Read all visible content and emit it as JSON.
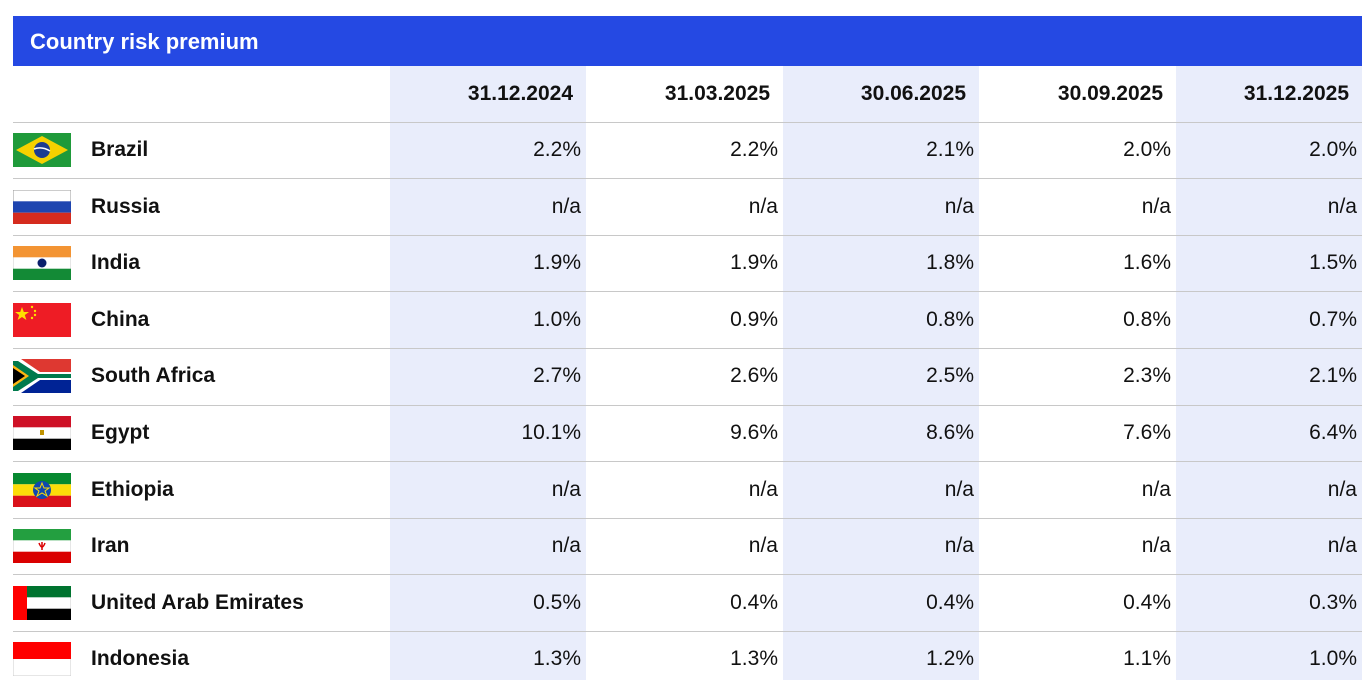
{
  "table": {
    "title": "Country risk premium",
    "columns": [
      "31.12.2024",
      "31.03.2025",
      "30.06.2025",
      "30.09.2025",
      "31.12.2025"
    ],
    "rows": [
      [
        "Brazil",
        "2.2%",
        "2.2%",
        "2.1%",
        "2.0%",
        "2.0%"
      ],
      [
        "Russia",
        "n/a",
        "n/a",
        "n/a",
        "n/a",
        "n/a"
      ],
      [
        "India",
        "1.9%",
        "1.9%",
        "1.8%",
        "1.6%",
        "1.5%"
      ],
      [
        "China",
        "1.0%",
        "0.9%",
        "0.8%",
        "0.8%",
        "0.7%"
      ],
      [
        "South Africa",
        "2.7%",
        "2.6%",
        "2.5%",
        "2.3%",
        "2.1%"
      ],
      [
        "Egypt",
        "10.1%",
        "9.6%",
        "8.6%",
        "7.6%",
        "6.4%"
      ],
      [
        "Ethiopia",
        "n/a",
        "n/a",
        "n/a",
        "n/a",
        "n/a"
      ],
      [
        "Iran",
        "n/a",
        "n/a",
        "n/a",
        "n/a",
        "n/a"
      ],
      [
        "United Arab Emirates",
        "0.5%",
        "0.4%",
        "0.4%",
        "0.4%",
        "0.3%"
      ],
      [
        "Indonesia",
        "1.3%",
        "1.3%",
        "1.2%",
        "1.1%",
        "1.0%"
      ]
    ]
  }
}
